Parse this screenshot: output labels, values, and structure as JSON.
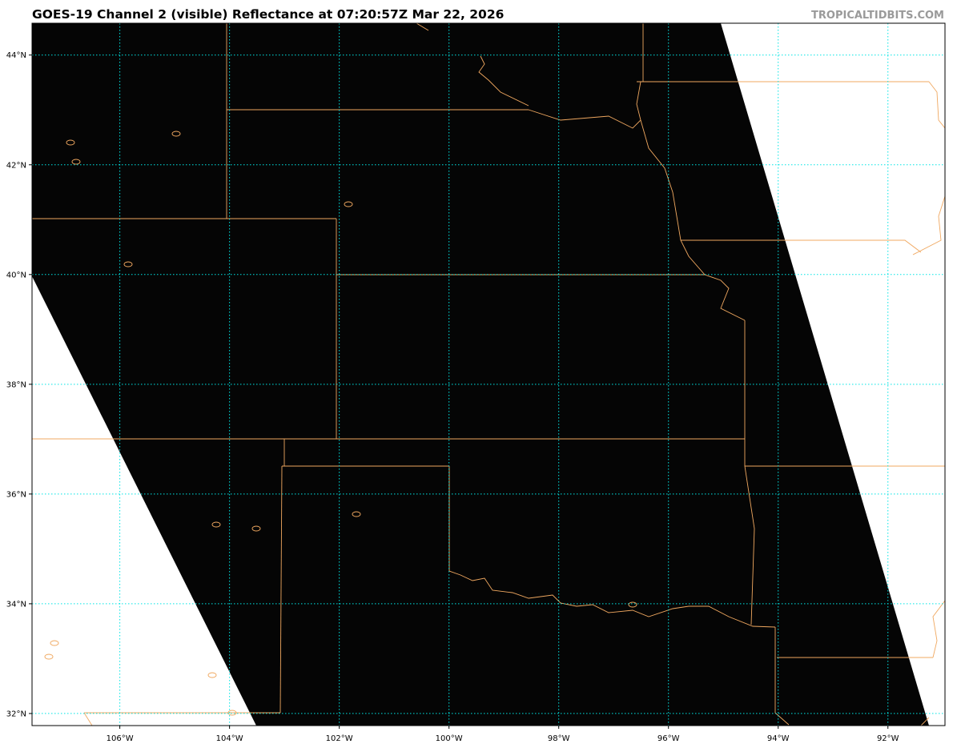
{
  "title": "GOES-19 Channel 2 (visible) Reflectance at 07:20:57Z Mar 22, 2026",
  "watermark": "TROPICALTIDBITS.COM",
  "map": {
    "extent_lon": [
      -107.6,
      -90.96
    ],
    "extent_lat": [
      31.78,
      44.58
    ],
    "lat_gridlines": [
      44,
      42,
      40,
      38,
      36,
      34,
      32
    ],
    "lon_gridlines": [
      -106,
      -104,
      -102,
      -100,
      -98,
      -96,
      -94,
      -92
    ],
    "lat_labels": [
      "44°N",
      "42°N",
      "40°N",
      "38°N",
      "36°N",
      "34°N",
      "32°N"
    ],
    "lon_labels": [
      "106°W",
      "104°W",
      "102°W",
      "100°W",
      "98°W",
      "96°W",
      "94°W",
      "92°W"
    ],
    "colors": {
      "imagery": "#050505",
      "no_data": "#ffffff",
      "gridlines": "#00e5e5",
      "borders": "#f0a860",
      "title": "#000000",
      "watermark": "#9a9a9a"
    }
  }
}
